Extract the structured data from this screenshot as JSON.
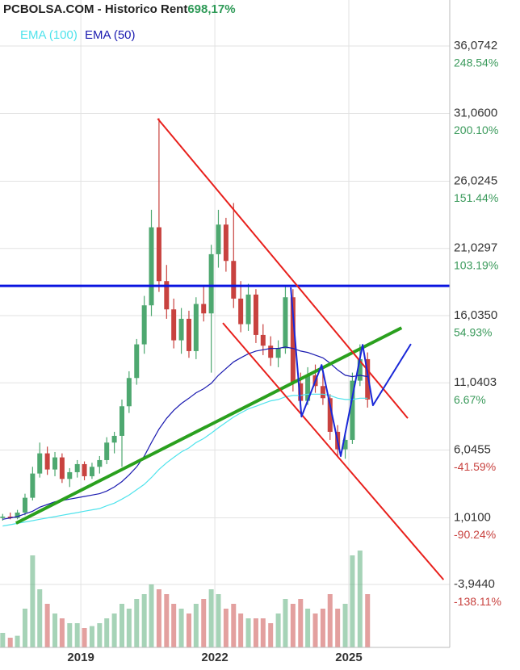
{
  "chart_data": {
    "type": "candlestick",
    "title": "PCBOLSA.COM - Historico  Rent",
    "title_value": "698,17%",
    "x": [
      2017.25,
      2017.42,
      2017.58,
      2017.75,
      2017.92,
      2018.08,
      2018.25,
      2018.42,
      2018.58,
      2018.75,
      2018.92,
      2019.08,
      2019.25,
      2019.42,
      2019.58,
      2019.75,
      2019.92,
      2020.08,
      2020.25,
      2020.42,
      2020.58,
      2020.75,
      2020.92,
      2021.08,
      2021.25,
      2021.42,
      2021.58,
      2021.75,
      2021.92,
      2022.08,
      2022.25,
      2022.42,
      2022.58,
      2022.75,
      2022.92,
      2023.08,
      2023.25,
      2023.42,
      2023.58,
      2023.75,
      2023.92,
      2024.08,
      2024.25,
      2024.42,
      2024.58,
      2024.75,
      2024.92,
      2025.08,
      2025.25,
      2025.42
    ],
    "ohlc": [
      [
        1.0,
        1.3,
        0.8,
        1.1
      ],
      [
        1.1,
        1.4,
        0.9,
        1.0
      ],
      [
        1.0,
        1.6,
        0.9,
        1.4
      ],
      [
        1.4,
        2.8,
        1.2,
        2.5
      ],
      [
        2.5,
        4.8,
        2.3,
        4.3
      ],
      [
        4.3,
        6.6,
        4.0,
        5.8
      ],
      [
        5.8,
        6.3,
        4.2,
        4.6
      ],
      [
        4.6,
        5.9,
        4.1,
        5.5
      ],
      [
        5.5,
        5.8,
        3.6,
        3.9
      ],
      [
        3.9,
        4.7,
        3.3,
        4.4
      ],
      [
        4.4,
        5.3,
        4.0,
        5.0
      ],
      [
        5.0,
        5.2,
        3.8,
        4.1
      ],
      [
        4.1,
        5.1,
        3.9,
        4.8
      ],
      [
        4.8,
        5.6,
        4.3,
        5.3
      ],
      [
        5.3,
        7.0,
        5.0,
        6.6
      ],
      [
        6.6,
        7.4,
        5.8,
        7.1
      ],
      [
        7.1,
        9.8,
        4.8,
        9.3
      ],
      [
        9.3,
        11.9,
        8.8,
        11.4
      ],
      [
        11.4,
        14.3,
        10.9,
        13.9
      ],
      [
        13.9,
        17.5,
        13.2,
        16.8
      ],
      [
        16.8,
        23.9,
        16.0,
        22.6
      ],
      [
        22.6,
        30.7,
        17.8,
        18.6
      ],
      [
        18.6,
        19.8,
        15.8,
        16.5
      ],
      [
        16.5,
        17.3,
        13.6,
        14.2
      ],
      [
        14.2,
        16.6,
        13.2,
        15.8
      ],
      [
        15.8,
        16.4,
        12.9,
        13.4
      ],
      [
        13.4,
        17.4,
        12.8,
        16.9
      ],
      [
        16.9,
        18.2,
        15.6,
        16.2
      ],
      [
        16.2,
        21.3,
        11.8,
        20.6
      ],
      [
        20.6,
        23.9,
        19.6,
        22.8
      ],
      [
        22.8,
        23.3,
        19.3,
        20.1
      ],
      [
        20.1,
        24.4,
        16.6,
        17.3
      ],
      [
        17.3,
        18.6,
        14.8,
        15.4
      ],
      [
        15.4,
        18.4,
        14.9,
        17.6
      ],
      [
        17.6,
        18.0,
        14.0,
        14.6
      ],
      [
        14.6,
        15.4,
        13.1,
        13.8
      ],
      [
        13.8,
        14.5,
        12.3,
        12.9
      ],
      [
        12.9,
        14.2,
        12.2,
        13.6
      ],
      [
        13.6,
        18.3,
        13.2,
        17.4
      ],
      [
        17.4,
        18.0,
        10.4,
        11.0
      ],
      [
        11.0,
        11.8,
        9.1,
        9.7
      ],
      [
        9.7,
        12.2,
        9.4,
        11.6
      ],
      [
        11.6,
        12.4,
        10.3,
        10.8
      ],
      [
        10.8,
        12.1,
        9.4,
        9.9
      ],
      [
        9.9,
        10.2,
        6.8,
        7.4
      ],
      [
        7.4,
        7.9,
        5.6,
        6.1
      ],
      [
        6.1,
        7.2,
        5.4,
        6.8
      ],
      [
        6.8,
        11.8,
        6.5,
        11.2
      ],
      [
        11.2,
        13.9,
        10.8,
        12.8
      ],
      [
        12.8,
        13.3,
        9.2,
        9.8
      ]
    ],
    "volume": [
      15,
      10,
      12,
      40,
      95,
      60,
      45,
      35,
      30,
      25,
      25,
      20,
      22,
      25,
      30,
      35,
      45,
      40,
      50,
      55,
      65,
      60,
      55,
      45,
      40,
      35,
      45,
      50,
      60,
      55,
      40,
      45,
      35,
      30,
      30,
      30,
      25,
      35,
      50,
      45,
      50,
      40,
      35,
      40,
      55,
      40,
      45,
      95,
      100,
      55
    ],
    "up_color": "#4ea870",
    "down_color": "#c8423f",
    "series": [
      {
        "name": "EMA (100)",
        "color": "#4fe3ec",
        "values": [
          0.4,
          0.5,
          0.6,
          0.7,
          0.8,
          0.9,
          1.0,
          1.1,
          1.2,
          1.3,
          1.4,
          1.5,
          1.6,
          1.7,
          1.9,
          2.1,
          2.4,
          2.7,
          3.1,
          3.5,
          4.0,
          4.6,
          5.1,
          5.5,
          5.9,
          6.2,
          6.6,
          6.9,
          7.3,
          7.7,
          8.1,
          8.5,
          8.8,
          9.1,
          9.3,
          9.5,
          9.7,
          9.8,
          10.0,
          10.1,
          10.1,
          10.2,
          10.2,
          10.2,
          10.1,
          9.9,
          9.8,
          9.8,
          9.9,
          9.9
        ]
      },
      {
        "name": "EMA (50)",
        "color": "#1b1bb0",
        "values": [
          0.9,
          1.0,
          1.1,
          1.3,
          1.5,
          1.8,
          2.0,
          2.2,
          2.3,
          2.4,
          2.5,
          2.6,
          2.7,
          2.8,
          3.0,
          3.3,
          3.7,
          4.2,
          4.8,
          5.6,
          6.6,
          7.6,
          8.4,
          9.0,
          9.5,
          9.9,
          10.3,
          10.6,
          11.0,
          11.6,
          12.1,
          12.6,
          12.9,
          13.2,
          13.4,
          13.5,
          13.6,
          13.6,
          13.7,
          13.6,
          13.4,
          13.3,
          13.1,
          12.9,
          12.5,
          12.0,
          11.6,
          11.5,
          11.6,
          11.5
        ]
      }
    ],
    "hline": {
      "value": 18.25,
      "color": "#0a14e0"
    },
    "drawings": [
      {
        "color": "#2aa01e",
        "width": 4,
        "points": [
          [
            2017.55,
            0.61
          ],
          [
            2026.18,
            15.13
          ]
        ]
      },
      {
        "color": "#e8201c",
        "width": 2,
        "points": [
          [
            2020.72,
            30.67
          ],
          [
            2026.32,
            8.41
          ]
        ]
      },
      {
        "color": "#e8201c",
        "width": 2,
        "points": [
          [
            2022.18,
            15.49
          ],
          [
            2027.12,
            -3.59
          ]
        ]
      },
      {
        "color": "#1a28d8",
        "width": 2,
        "points": [
          [
            2023.7,
            18.13
          ],
          [
            2023.94,
            8.53
          ],
          [
            2024.39,
            12.37
          ],
          [
            2024.82,
            5.59
          ],
          [
            2025.31,
            13.87
          ],
          [
            2025.54,
            9.37
          ],
          [
            2026.39,
            13.93
          ]
        ]
      }
    ],
    "xlim": [
      2017.19,
      2027.26
    ],
    "xticks": [
      2019,
      2022,
      2025
    ],
    "ylim": [
      -8.62,
      39.49
    ],
    "yticks": [
      {
        "value": 36.0742,
        "label": "36,0742"
      },
      {
        "value": 31.06,
        "label": "31,0600"
      },
      {
        "value": 26.0245,
        "label": "26,0245"
      },
      {
        "value": 21.0297,
        "label": "21,0297"
      },
      {
        "value": 16.035,
        "label": "16,0350"
      },
      {
        "value": 11.0403,
        "label": "11,0403"
      },
      {
        "value": 6.0455,
        "label": "6,0455"
      },
      {
        "value": 1.01,
        "label": "1,0100"
      },
      {
        "value": -3.944,
        "label": "-3,9440"
      }
    ],
    "y2lim": [
      -183.29,
      281.55
    ],
    "y2ticks": [
      {
        "value": 248.54,
        "label": "248.54%"
      },
      {
        "value": 200.1,
        "label": "200.10%"
      },
      {
        "value": 151.44,
        "label": "151.44%"
      },
      {
        "value": 103.19,
        "label": "103.19%"
      },
      {
        "value": 54.93,
        "label": "54.93%"
      },
      {
        "value": 6.67,
        "label": "6.67%"
      },
      {
        "value": -41.59,
        "label": "-41.59%"
      },
      {
        "value": -90.24,
        "label": "-90.24%"
      },
      {
        "value": -138.11,
        "label": "-138.11%"
      }
    ],
    "grid": true
  }
}
